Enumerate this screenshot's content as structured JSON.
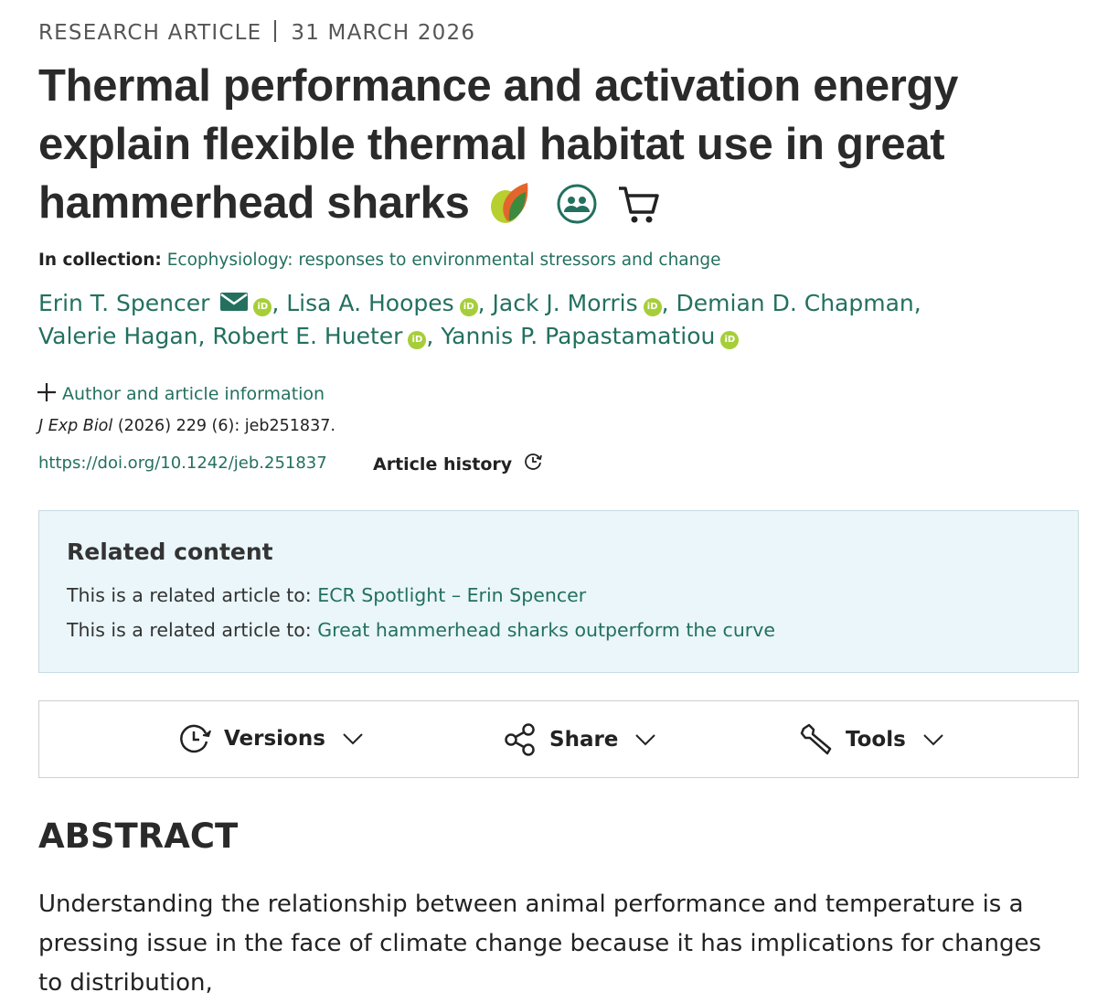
{
  "header": {
    "type": "RESEARCH ARTICLE",
    "date": "31 MARCH 2026",
    "title": "Thermal performance and activation energy explain flexible thermal habitat use in great hammerhead sharks"
  },
  "collection": {
    "label": "In collection:",
    "name": "Ecophysiology: responses to environmental stressors and change"
  },
  "authors": {
    "names": [
      "Erin T. Spencer",
      "Lisa A. Hoopes",
      "Jack J. Morris",
      "Demian D. Chapman",
      "Valerie Hagan",
      "Robert E. Hueter",
      "Yannis P. Papastamatiou"
    ],
    "separator": ","
  },
  "info_toggle": "Author and article information",
  "citation": {
    "journal": "J Exp Biol",
    "details": "(2026) 229 (6): jeb251837."
  },
  "doi": "https://doi.org/10.1242/jeb.251837",
  "article_history": "Article history",
  "related": {
    "heading": "Related content",
    "items": [
      {
        "prefix": "This is a related article to:",
        "link": "ECR Spotlight – Erin Spencer"
      },
      {
        "prefix": "This is a related article to:",
        "link": "Great hammerhead sharks outperform the curve"
      }
    ]
  },
  "toolbar": [
    "Versions",
    "Share",
    "Tools"
  ],
  "abstract": {
    "heading": "ABSTRACT",
    "text": "Understanding the relationship between animal performance and temperature is a pressing issue in the face of climate change because it has implications for changes to distribution,"
  }
}
